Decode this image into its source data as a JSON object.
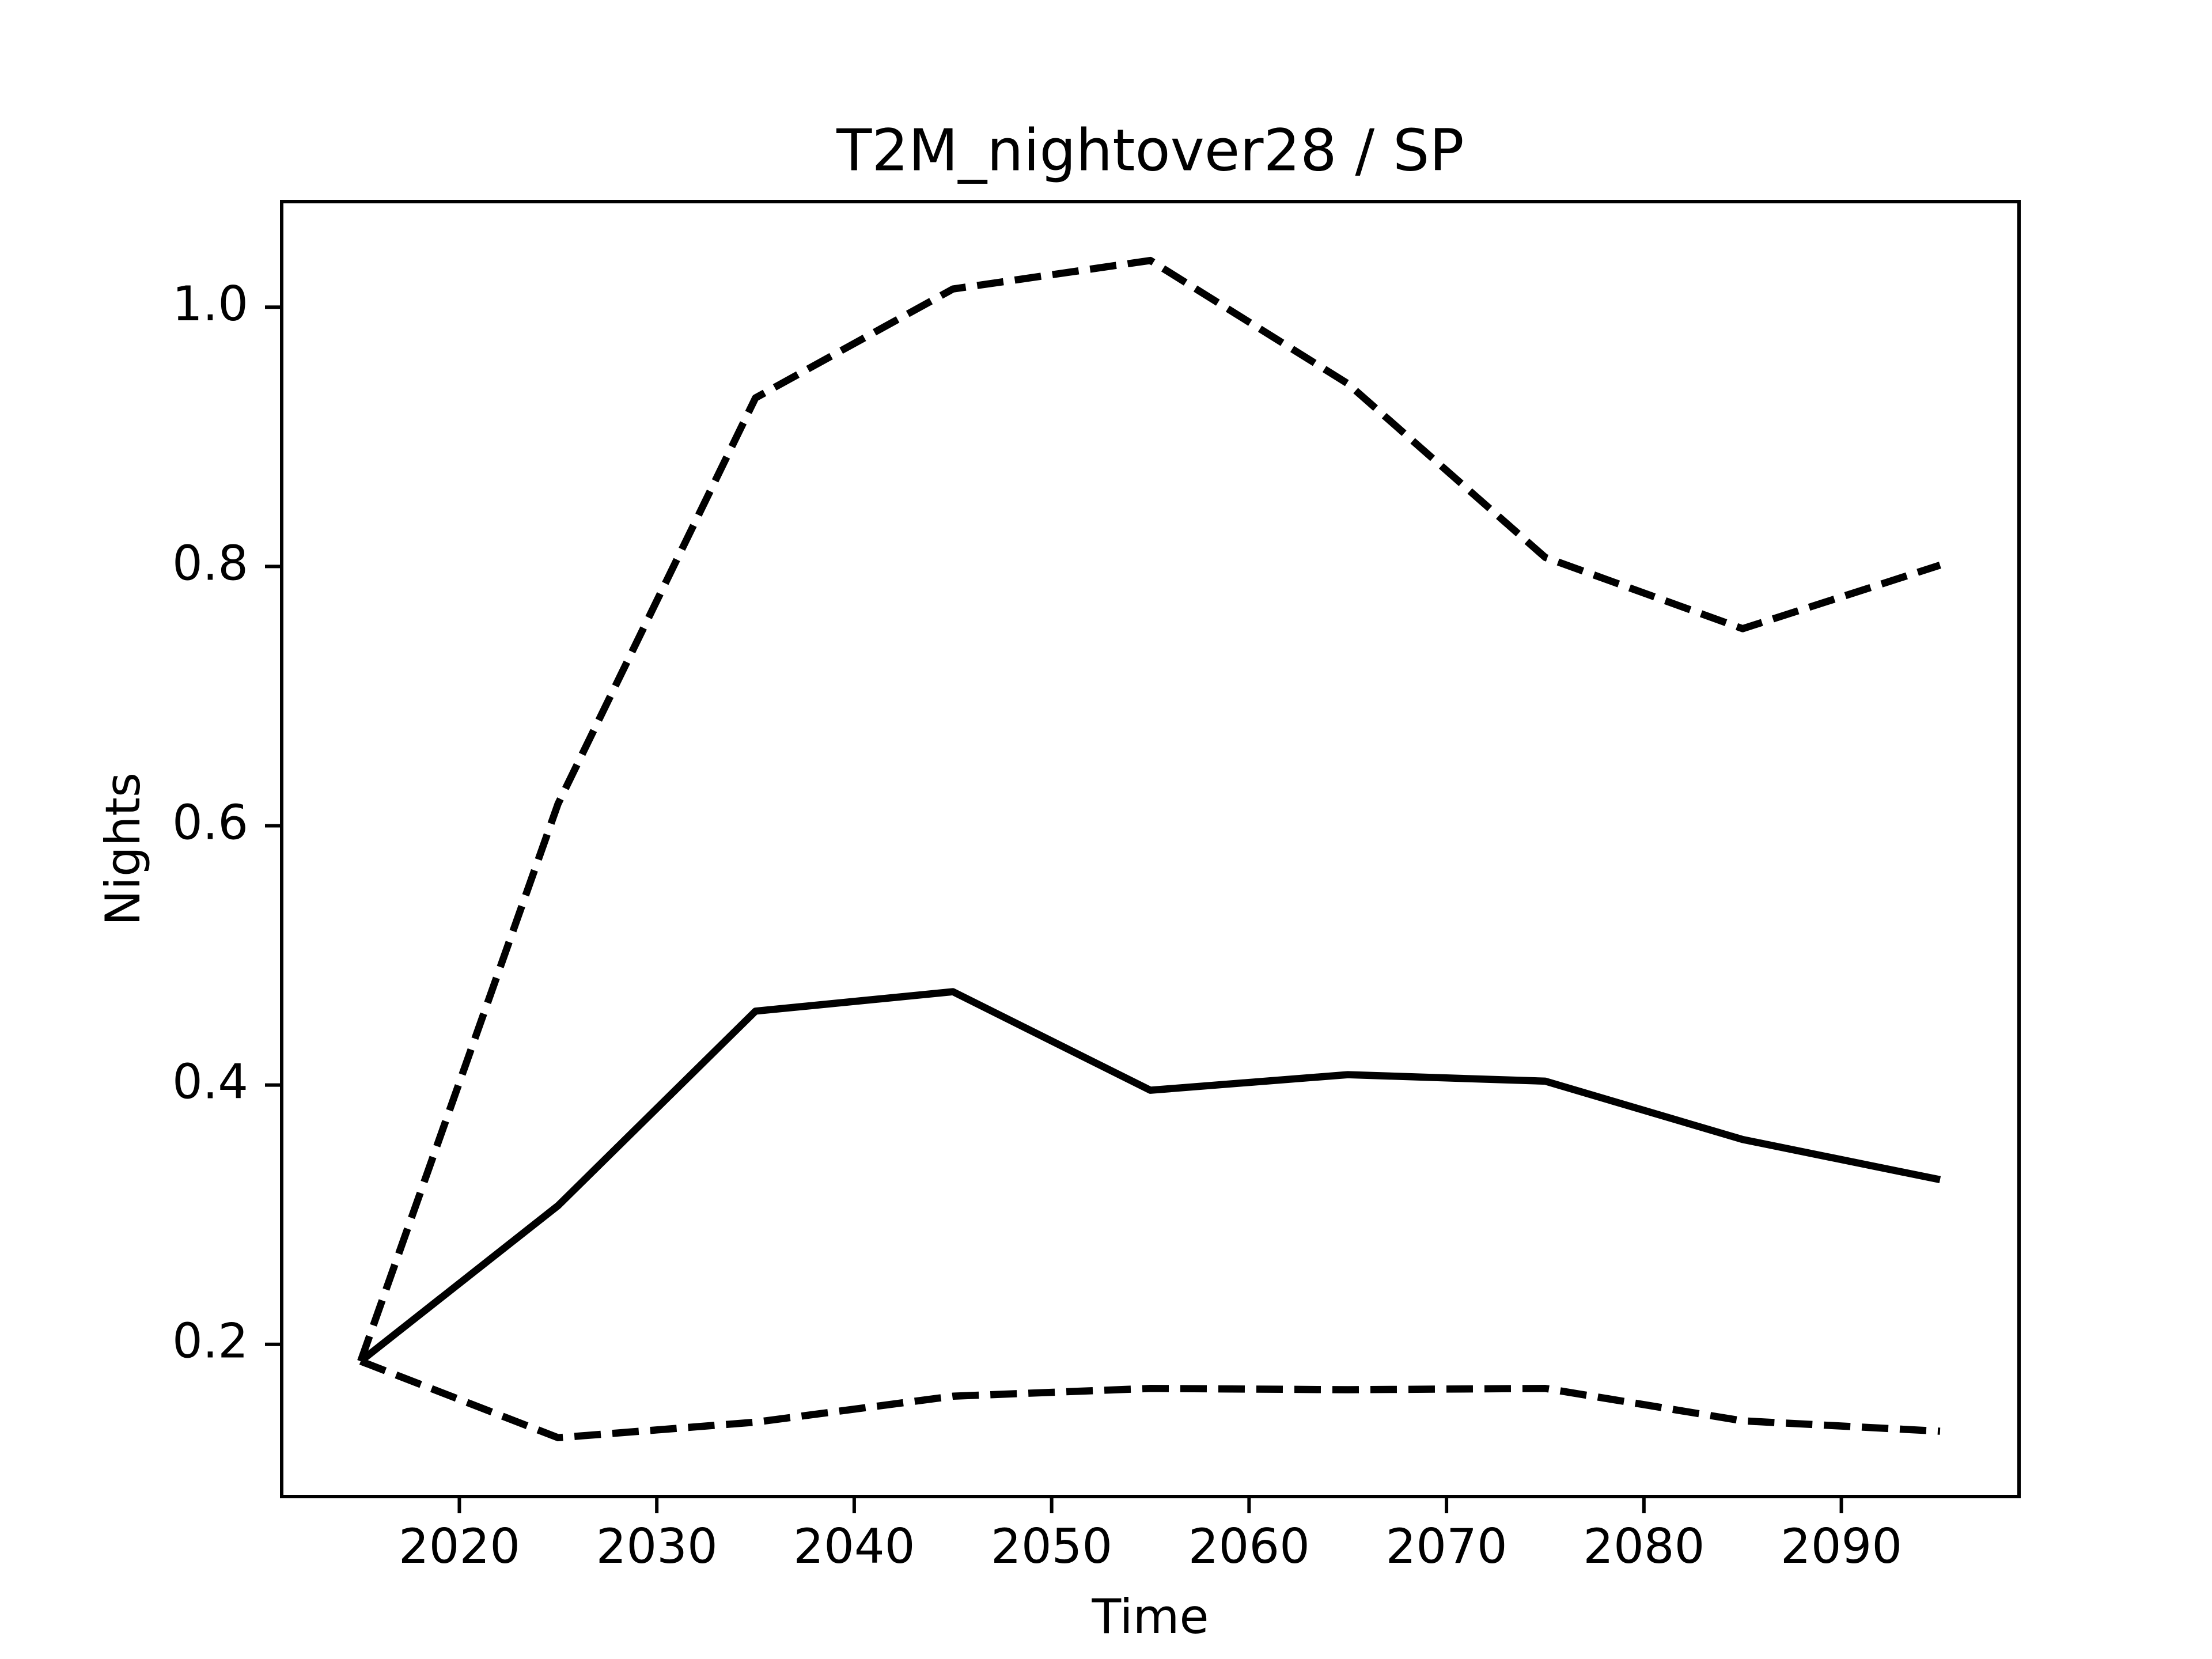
{
  "chart_data": {
    "type": "line",
    "title": "T2M_nightover28 / SP",
    "x_label": "Time",
    "y_label": "Nights",
    "x": [
      2015,
      2025,
      2035,
      2045,
      2055,
      2065,
      2075,
      2085,
      2095
    ],
    "series": [
      {
        "color": "#000000",
        "linestyle": "dashed",
        "values": [
          0.187,
          0.617,
          0.93,
          1.014,
          1.036,
          0.941,
          0.807,
          0.752,
          0.801
        ]
      },
      {
        "color": "#000000",
        "linestyle": "solid",
        "values": [
          0.187,
          0.307,
          0.457,
          0.472,
          0.396,
          0.408,
          0.403,
          0.358,
          0.327
        ]
      },
      {
        "color": "#000000",
        "linestyle": "dashed",
        "values": [
          0.187,
          0.128,
          0.14,
          0.16,
          0.166,
          0.165,
          0.166,
          0.141,
          0.133
        ]
      }
    ],
    "xlim": [
      2011,
      2099
    ],
    "xticks": [
      2020,
      2030,
      2040,
      2050,
      2060,
      2070,
      2080,
      2090
    ],
    "ylim": [
      0.0826,
      1.0814
    ],
    "yticks": [
      0.2,
      0.4,
      0.6,
      0.8,
      {
        "value": 1.0,
        "label": "1.0"
      }
    ],
    "grid": false
  }
}
